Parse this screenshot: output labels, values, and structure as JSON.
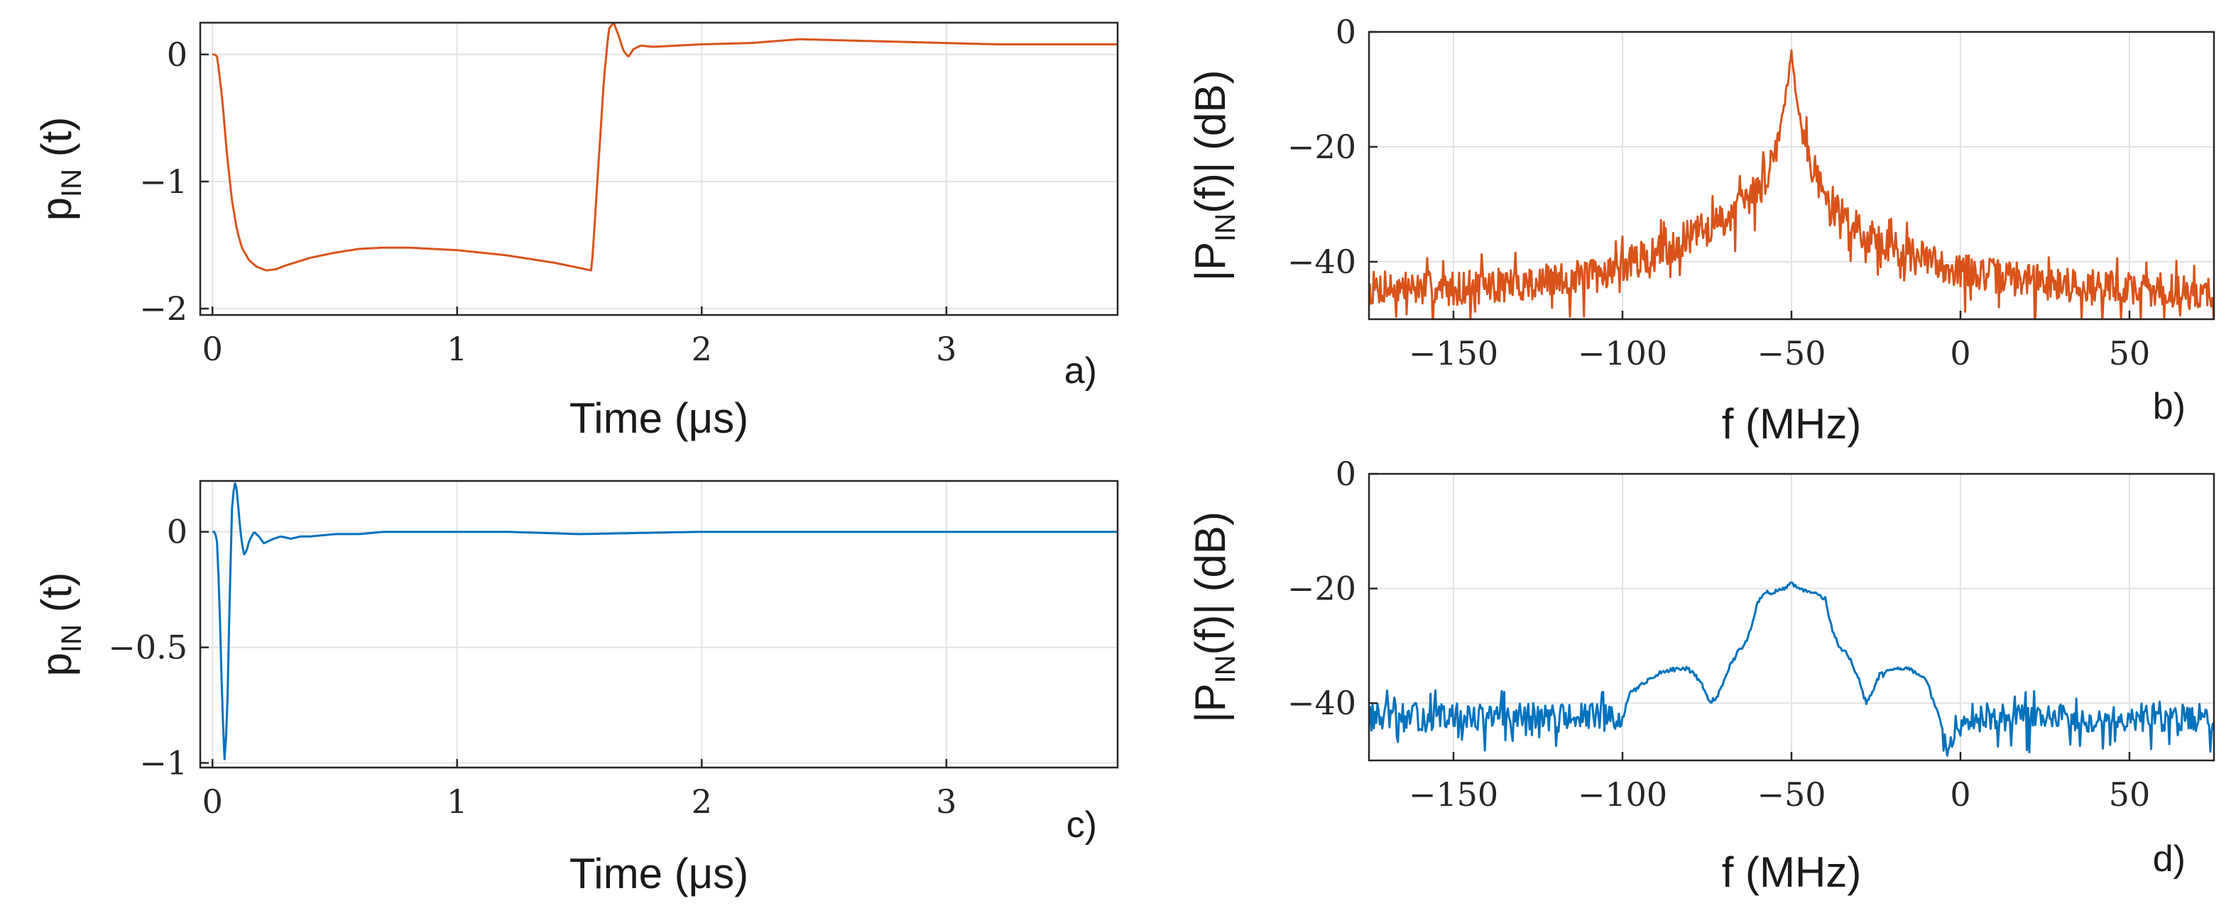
{
  "colors": {
    "orange": "#D95319",
    "blue": "#0072BD",
    "grid": "#e3e3e3",
    "axis": "#262626"
  },
  "chart_data": [
    {
      "id": "a",
      "type": "line",
      "panel_label": "a)",
      "xlabel": "Time (μs)",
      "ylabel_main": "p",
      "ylabel_sub": "IN",
      "ylabel_tail": " (t)",
      "xlim": [
        -0.05,
        3.7
      ],
      "ylim": [
        -2.05,
        0.25
      ],
      "xticks": [
        0,
        1,
        2,
        3
      ],
      "xtick_labels": [
        "0",
        "1",
        "2",
        "3"
      ],
      "yticks": [
        0,
        -1,
        -2
      ],
      "ytick_labels": [
        "0",
        "−1",
        "−2"
      ],
      "grid": true,
      "color": "orange",
      "series": [
        {
          "name": "p_IN(t)",
          "x": [
            0,
            0.01,
            0.02,
            0.04,
            0.06,
            0.08,
            0.1,
            0.12,
            0.15,
            0.18,
            0.22,
            0.26,
            0.3,
            0.4,
            0.5,
            0.6,
            0.7,
            0.8,
            0.9,
            1.0,
            1.1,
            1.2,
            1.3,
            1.4,
            1.5,
            1.55,
            1.56,
            1.58,
            1.6,
            1.62,
            1.64,
            1.66,
            1.68,
            1.7,
            1.72,
            1.75,
            1.8,
            1.9,
            2.0,
            2.2,
            2.4,
            2.6,
            2.8,
            3.0,
            3.2,
            3.4,
            3.6,
            3.7
          ],
          "y": [
            0,
            0,
            -0.02,
            -0.35,
            -0.8,
            -1.15,
            -1.38,
            -1.52,
            -1.62,
            -1.67,
            -1.7,
            -1.69,
            -1.66,
            -1.6,
            -1.56,
            -1.53,
            -1.52,
            -1.52,
            -1.53,
            -1.54,
            -1.56,
            -1.58,
            -1.61,
            -1.64,
            -1.68,
            -1.7,
            -1.4,
            -0.8,
            -0.2,
            0.2,
            0.25,
            0.15,
            0.03,
            -0.02,
            0.04,
            0.07,
            0.06,
            0.07,
            0.08,
            0.09,
            0.12,
            0.11,
            0.1,
            0.09,
            0.08,
            0.08,
            0.08,
            0.08
          ]
        }
      ]
    },
    {
      "id": "b",
      "type": "line",
      "panel_label": "b)",
      "xlabel": "f (MHz)",
      "ylabel_main": "|P",
      "ylabel_sub": "IN",
      "ylabel_tail": "(f)| (dB)",
      "xlim": [
        -175,
        75
      ],
      "ylim": [
        -50,
        0
      ],
      "xticks": [
        -150,
        -100,
        -50,
        0,
        50
      ],
      "xtick_labels": [
        "−150",
        "−100",
        "−50",
        "0",
        "50"
      ],
      "yticks": [
        0,
        -20,
        -40
      ],
      "ytick_labels": [
        "0",
        "−20",
        "−40"
      ],
      "grid": true,
      "color": "orange",
      "series": [
        {
          "name": "|P_IN(f)|",
          "noise_seed": 7,
          "noise_amp": 6,
          "samples": 900,
          "x": [
            -175,
            -150,
            -125,
            -110,
            -100,
            -90,
            -80,
            -70,
            -62,
            -57,
            -54,
            -52,
            -51,
            -50,
            -49,
            -48,
            -46,
            -43,
            -40,
            -35,
            -30,
            -20,
            -10,
            0,
            25,
            50,
            75
          ],
          "y": [
            -44,
            -44,
            -43,
            -42,
            -40,
            -38,
            -35,
            -32,
            -28,
            -24,
            -18,
            -12,
            -8,
            -3,
            -8,
            -13,
            -19,
            -24,
            -28,
            -31,
            -34,
            -37,
            -39,
            -41,
            -43,
            -44,
            -45
          ]
        }
      ]
    },
    {
      "id": "c",
      "type": "line",
      "panel_label": "c)",
      "xlabel": "Time (μs)",
      "ylabel_main": "p",
      "ylabel_sub": "IN",
      "ylabel_tail": " (t)",
      "xlim": [
        -0.05,
        3.7
      ],
      "ylim": [
        -1.02,
        0.22
      ],
      "xticks": [
        0,
        1,
        2,
        3
      ],
      "xtick_labels": [
        "0",
        "1",
        "2",
        "3"
      ],
      "yticks": [
        0,
        -0.5,
        -1
      ],
      "ytick_labels": [
        "0",
        "−0.5",
        "−1"
      ],
      "grid": true,
      "color": "blue",
      "series": [
        {
          "name": "p_IN(t)",
          "x": [
            0,
            0.01,
            0.02,
            0.03,
            0.04,
            0.05,
            0.06,
            0.07,
            0.08,
            0.09,
            0.1,
            0.11,
            0.12,
            0.13,
            0.14,
            0.15,
            0.17,
            0.19,
            0.21,
            0.23,
            0.25,
            0.28,
            0.32,
            0.36,
            0.4,
            0.5,
            0.6,
            0.7,
            0.8,
            0.9,
            1.0,
            1.2,
            1.5,
            2.0,
            2.5,
            3.0,
            3.5,
            3.7
          ],
          "y": [
            0,
            0,
            -0.05,
            -0.35,
            -0.75,
            -1.0,
            -0.8,
            -0.3,
            0.1,
            0.22,
            0.18,
            0.05,
            -0.05,
            -0.1,
            -0.08,
            -0.04,
            0.0,
            -0.02,
            -0.05,
            -0.04,
            -0.03,
            -0.02,
            -0.03,
            -0.02,
            -0.02,
            -0.01,
            -0.01,
            0.0,
            0.0,
            0.0,
            0.0,
            0.0,
            -0.01,
            0.0,
            0.0,
            0.0,
            0.0,
            0.0
          ]
        }
      ]
    },
    {
      "id": "d",
      "type": "line",
      "panel_label": "d)",
      "xlabel": "f (MHz)",
      "ylabel_main": "|P",
      "ylabel_sub": "IN",
      "ylabel_tail": "(f)| (dB)",
      "xlim": [
        -175,
        75
      ],
      "ylim": [
        -50,
        0
      ],
      "xticks": [
        -150,
        -100,
        -50,
        0,
        50
      ],
      "xtick_labels": [
        "−150",
        "−100",
        "−50",
        "0",
        "50"
      ],
      "yticks": [
        0,
        -20,
        -40
      ],
      "ytick_labels": [
        "0",
        "−20",
        "−40"
      ],
      "grid": true,
      "color": "blue",
      "series": [
        {
          "name": "|P_IN(f)|",
          "noise_seed": 13,
          "noise_amp": 5,
          "samples": 700,
          "noise_ranges": [
            [
              -175,
              -100
            ],
            [
              -5,
              75
            ]
          ],
          "x": [
            -175,
            -150,
            -125,
            -105,
            -100,
            -98,
            -95,
            -90,
            -85,
            -80,
            -77,
            -74,
            -72,
            -70,
            -68,
            -66,
            -64,
            -62,
            -60,
            -58,
            -55,
            -52,
            -50,
            -48,
            -45,
            -42,
            -40,
            -38,
            -36,
            -34,
            -32,
            -30,
            -28,
            -26,
            -24,
            -20,
            -15,
            -10,
            -6,
            -4,
            0,
            25,
            50,
            75
          ],
          "y": [
            -42,
            -42,
            -42,
            -42,
            -43,
            -38,
            -37,
            -35,
            -34,
            -34,
            -36,
            -40,
            -39,
            -36,
            -33,
            -31,
            -30,
            -27,
            -22,
            -21,
            -20.5,
            -20,
            -19,
            -20,
            -20.5,
            -21,
            -22,
            -27,
            -30,
            -31,
            -33,
            -36,
            -40,
            -38,
            -35,
            -34,
            -34,
            -36,
            -43,
            -48,
            -42,
            -42,
            -42,
            -42
          ]
        }
      ]
    }
  ]
}
